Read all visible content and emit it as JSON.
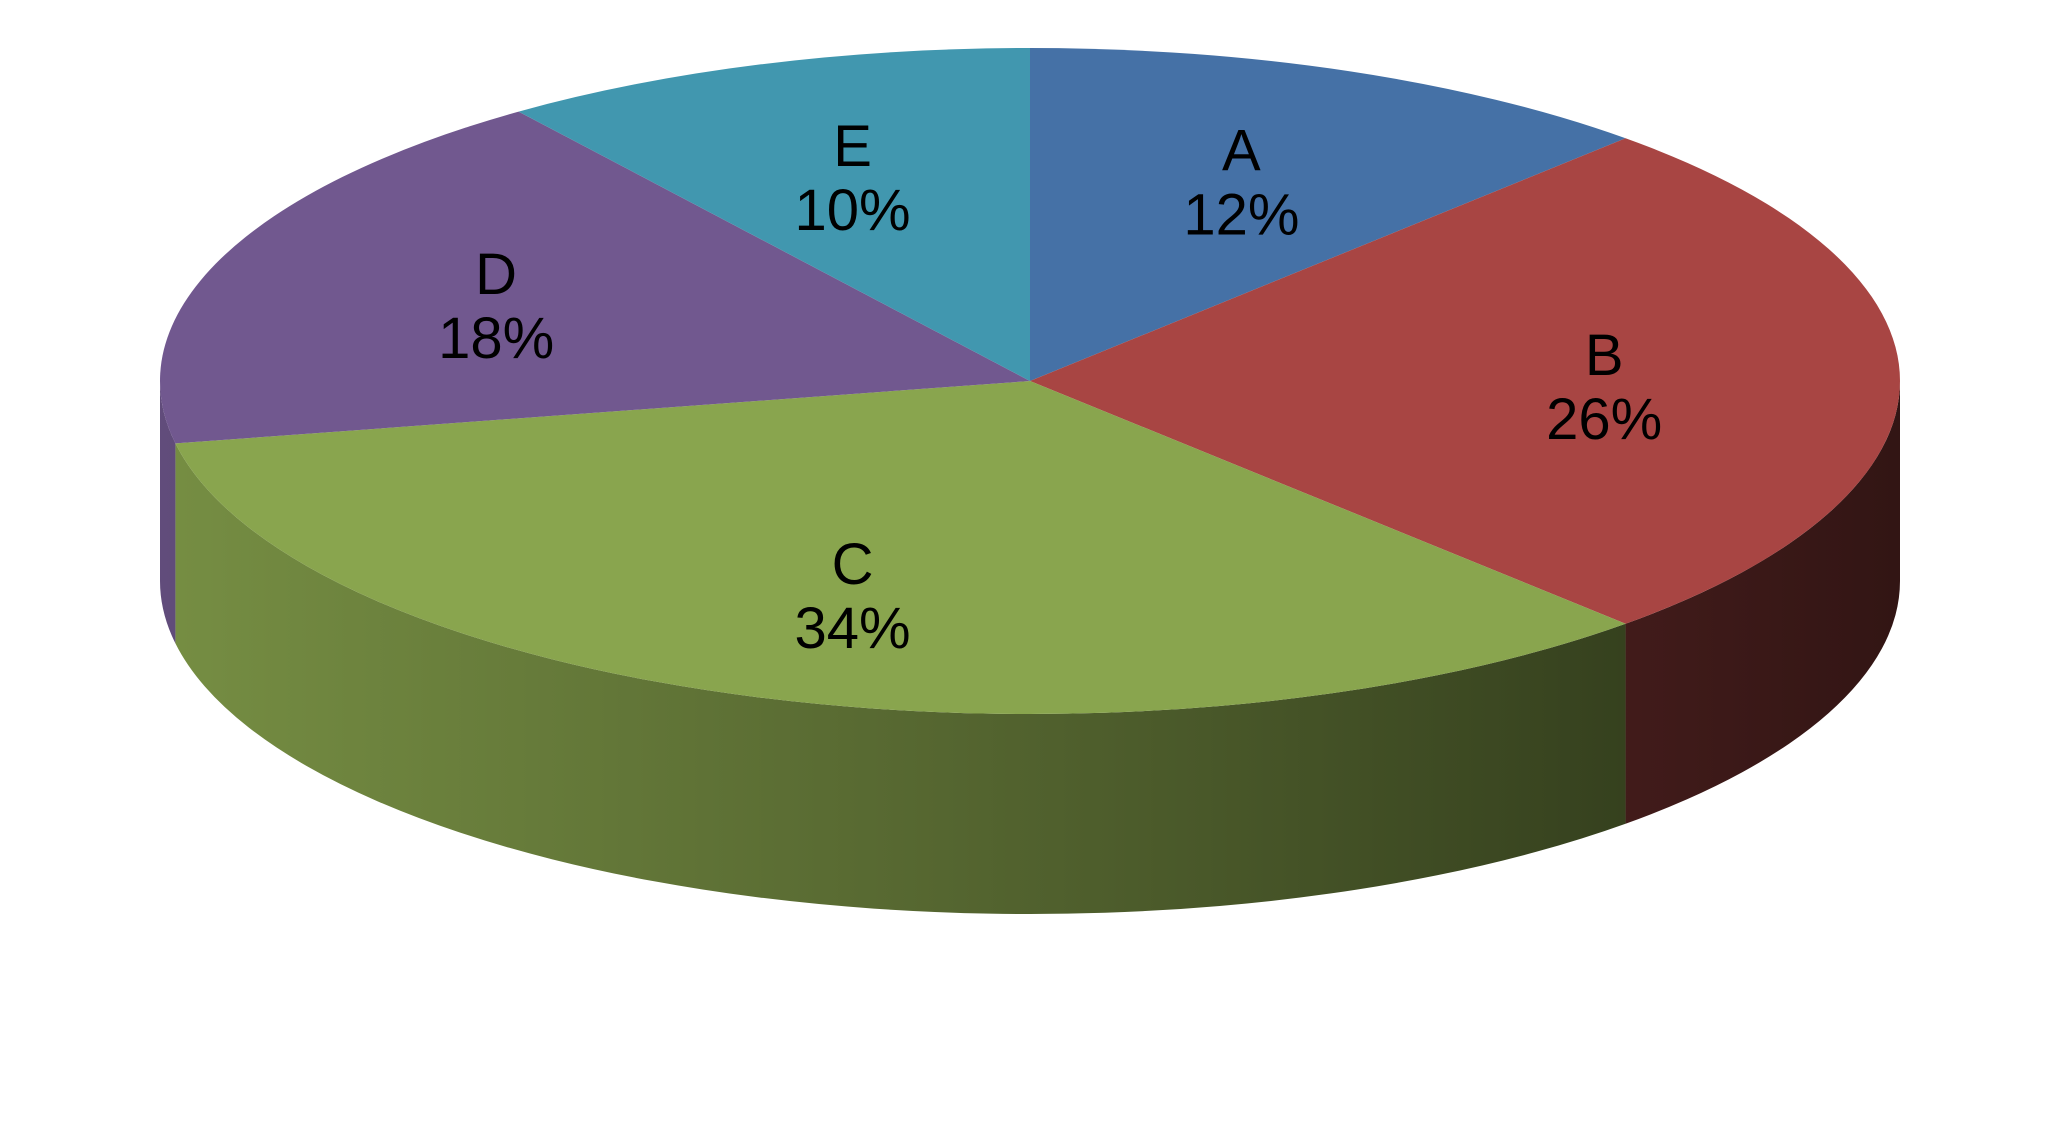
{
  "chart_data": {
    "type": "pie",
    "style": "3d",
    "legend": "none",
    "start": "top",
    "direction": "clockwise",
    "slices": [
      {
        "name": "A",
        "value": 12,
        "label": "12%",
        "color": "#4571A6"
      },
      {
        "name": "B",
        "value": 26,
        "label": "26%",
        "color": "#A84543"
      },
      {
        "name": "C",
        "value": 34,
        "label": "34%",
        "color": "#89A54E"
      },
      {
        "name": "D",
        "value": 18,
        "label": "18%",
        "color": "#71588F"
      },
      {
        "name": "E",
        "value": 10,
        "label": "10%",
        "color": "#4197AF"
      }
    ]
  }
}
